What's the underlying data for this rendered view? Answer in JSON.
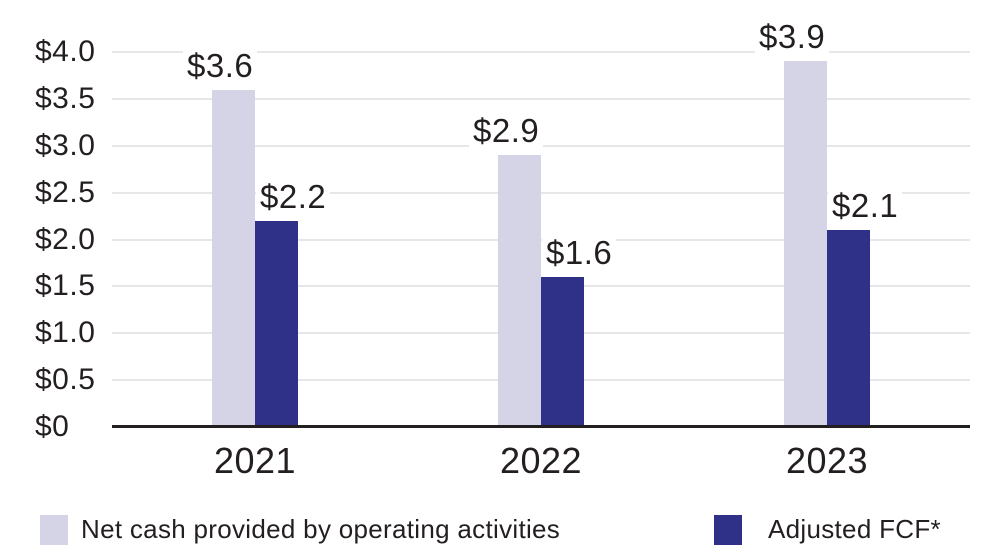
{
  "chart_data": {
    "type": "bar",
    "categories": [
      "2021",
      "2022",
      "2023"
    ],
    "series": [
      {
        "name": "Net cash provided by operating activities",
        "color": "#d5d4e6",
        "values": [
          3.6,
          2.9,
          3.9
        ],
        "data_labels": [
          "$3.6",
          "$2.9",
          "$3.9"
        ]
      },
      {
        "name": "Adjusted FCF*",
        "color": "#2e3187",
        "values": [
          2.2,
          1.6,
          2.1
        ],
        "data_labels": [
          "$2.2",
          "$1.6",
          "$2.1"
        ]
      }
    ],
    "y_axis": {
      "min": 0,
      "max": 4,
      "ticks": [
        {
          "value": 0,
          "label": "$0"
        },
        {
          "value": 0.5,
          "label": "$0.5"
        },
        {
          "value": 1,
          "label": "$1.0"
        },
        {
          "value": 1.5,
          "label": "$1.5"
        },
        {
          "value": 2,
          "label": "$2.0"
        },
        {
          "value": 2.5,
          "label": "$2.5"
        },
        {
          "value": 3,
          "label": "$3.0"
        },
        {
          "value": 3.5,
          "label": "$3.5"
        },
        {
          "value": 4,
          "label": "$4.0"
        }
      ]
    },
    "grid": true,
    "legend_position": "bottom"
  },
  "colors": {
    "background": "#ffffff",
    "gridline": "#e7e7e7",
    "axis_line": "#231f20",
    "text": "#231f20",
    "series_light": "#d5d4e6",
    "series_dark": "#2e3187"
  }
}
